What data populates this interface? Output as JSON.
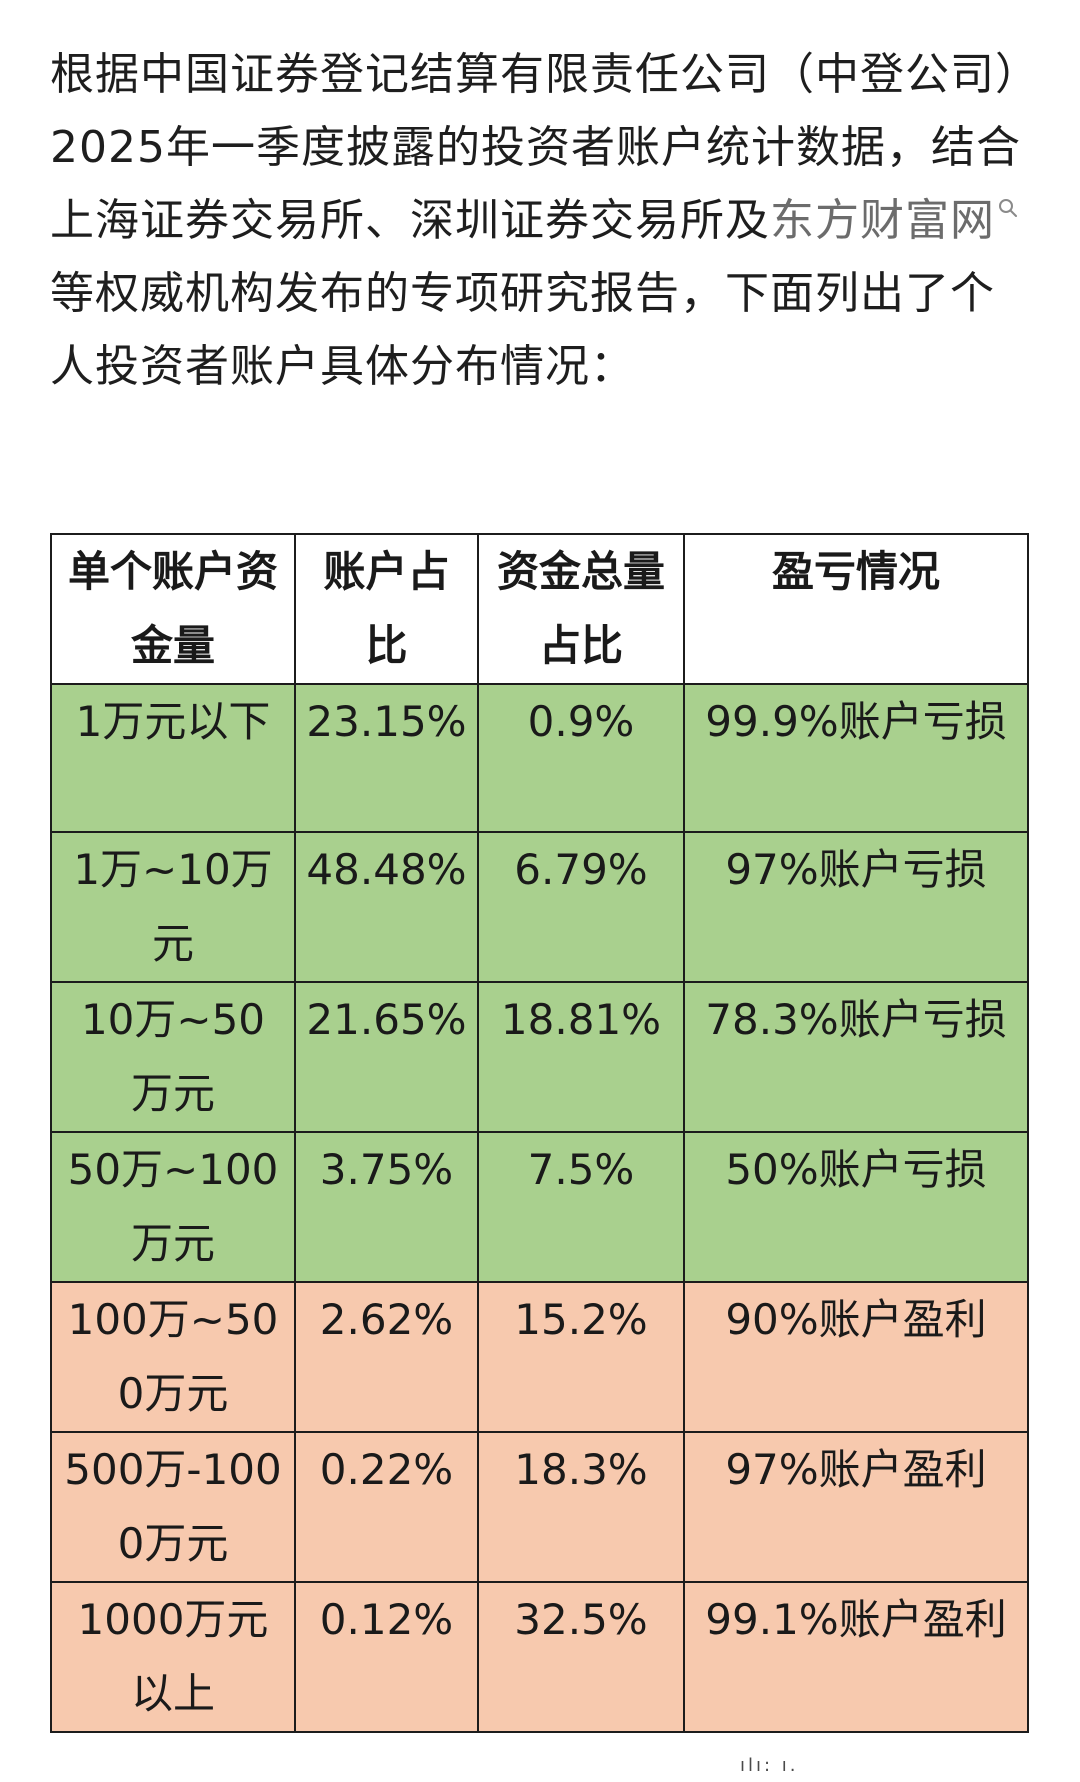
{
  "intro": {
    "before_link": "根据中国证券登记结算有限责任公司（中登公司）2025年一季度披露的投资者账户统计数据，结合上海证券交易所、深圳证券交易所及",
    "link_text": "东方财富网",
    "after_link": "等权威机构发布的专项研究报告，下面列出了个人投资者账户具体分布情况："
  },
  "table": {
    "headers": [
      "单个账户资金量",
      "账户占比",
      "资金总量占比",
      "盈亏情况"
    ],
    "rows": [
      {
        "size": "1万元以下",
        "account_share": "23.15%",
        "fund_share": "0.9%",
        "result": "99.9%账户亏损",
        "tone": "loss"
      },
      {
        "size": "1万~10万元",
        "account_share": "48.48%",
        "fund_share": "6.79%",
        "result": "97%账户亏损",
        "tone": "loss"
      },
      {
        "size": "10万~50万元",
        "account_share": "21.65%",
        "fund_share": "18.81%",
        "result": "78.3%账户亏损",
        "tone": "loss"
      },
      {
        "size": "50万~100万元",
        "account_share": "3.75%",
        "fund_share": "7.5%",
        "result": "50%账户亏损",
        "tone": "loss"
      },
      {
        "size": "100万~500万元",
        "account_share": "2.62%",
        "fund_share": "15.2%",
        "result": "90%账户盈利",
        "tone": "gain"
      },
      {
        "size": "500万-1000万元",
        "account_share": "0.22%",
        "fund_share": "18.3%",
        "result": "97%账户盈利",
        "tone": "gain"
      },
      {
        "size": "1000万元以上",
        "account_share": "0.12%",
        "fund_share": "32.5%",
        "result": "99.1%账户盈利",
        "tone": "gain"
      }
    ]
  },
  "colors": {
    "loss_row": "#a9d08e",
    "gain_row": "#f7c9ae",
    "border": "#1c1c1c",
    "link": "#6c6c6c"
  },
  "icons": {
    "link_marker": "search-icon"
  },
  "watermark": "ılı: ı."
}
